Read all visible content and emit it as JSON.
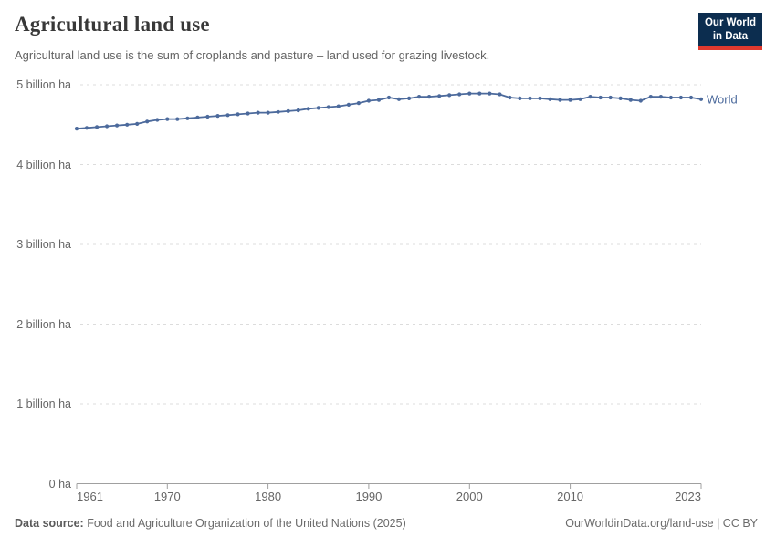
{
  "header": {
    "title": "Agricultural land use",
    "subtitle": "Agricultural land use is the sum of croplands and pasture – land used for grazing livestock.",
    "logo": {
      "line1": "Our World",
      "line2": "in Data",
      "bg_color": "#0c2d4f",
      "accent_color": "#e0392e"
    }
  },
  "chart_data": {
    "type": "line",
    "title": "Agricultural land use",
    "unit": "billion ha",
    "xlabel": "",
    "ylabel": "",
    "ylim": [
      0,
      5
    ],
    "grid": "horizontal-dashed",
    "legend_position": "end-of-line",
    "x_ticks": [
      1961,
      1970,
      1980,
      1990,
      2000,
      2010,
      2023
    ],
    "y_ticks": [
      {
        "value": 0,
        "label": "0 ha"
      },
      {
        "value": 1,
        "label": "1 billion ha"
      },
      {
        "value": 2,
        "label": "2 billion ha"
      },
      {
        "value": 3,
        "label": "3 billion ha"
      },
      {
        "value": 4,
        "label": "4 billion ha"
      },
      {
        "value": 5,
        "label": "5 billion ha"
      }
    ],
    "x": [
      1961,
      1962,
      1963,
      1964,
      1965,
      1966,
      1967,
      1968,
      1969,
      1970,
      1971,
      1972,
      1973,
      1974,
      1975,
      1976,
      1977,
      1978,
      1979,
      1980,
      1981,
      1982,
      1983,
      1984,
      1985,
      1986,
      1987,
      1988,
      1989,
      1990,
      1991,
      1992,
      1993,
      1994,
      1995,
      1996,
      1997,
      1998,
      1999,
      2000,
      2001,
      2002,
      2003,
      2004,
      2005,
      2006,
      2007,
      2008,
      2009,
      2010,
      2011,
      2012,
      2013,
      2014,
      2015,
      2016,
      2017,
      2018,
      2019,
      2020,
      2021,
      2022,
      2023
    ],
    "series": [
      {
        "name": "World",
        "color": "#4c6a9c",
        "values": [
          4.45,
          4.46,
          4.47,
          4.48,
          4.49,
          4.5,
          4.51,
          4.54,
          4.56,
          4.57,
          4.57,
          4.58,
          4.59,
          4.6,
          4.61,
          4.62,
          4.63,
          4.64,
          4.65,
          4.65,
          4.66,
          4.67,
          4.68,
          4.7,
          4.71,
          4.72,
          4.73,
          4.75,
          4.77,
          4.8,
          4.81,
          4.84,
          4.82,
          4.83,
          4.85,
          4.85,
          4.86,
          4.87,
          4.88,
          4.89,
          4.89,
          4.89,
          4.88,
          4.84,
          4.83,
          4.83,
          4.83,
          4.82,
          4.81,
          4.81,
          4.82,
          4.85,
          4.84,
          4.84,
          4.83,
          4.81,
          4.8,
          4.85,
          4.85,
          4.84,
          4.84,
          4.84,
          4.82
        ]
      }
    ],
    "axis_color": "#a0a0a0",
    "gridline_color": "#dcdcdc"
  },
  "footer": {
    "source_label": "Data source:",
    "source_text": "Food and Agriculture Organization of the United Nations (2025)",
    "right_text": "OurWorldinData.org/land-use | CC BY"
  }
}
